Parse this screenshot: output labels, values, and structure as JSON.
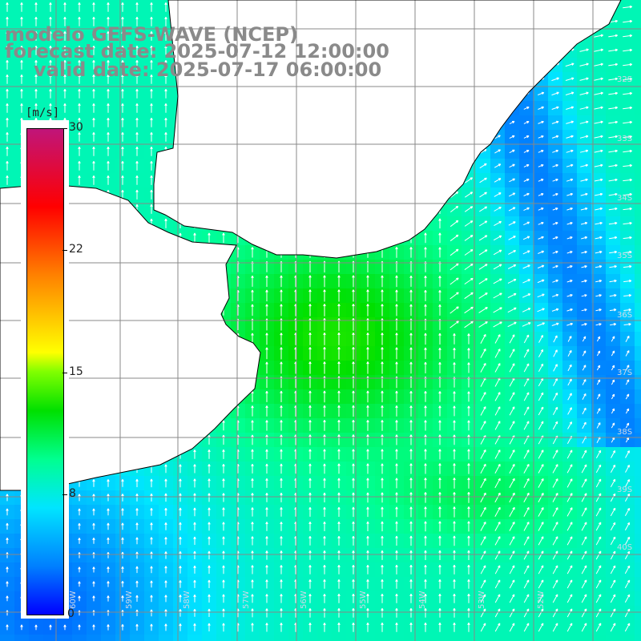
{
  "header": {
    "line1": "modelo GEFS-WAVE (NCEP)",
    "line2": "forecast date: 2025-07-12 12:00:00",
    "line3": "valid date: 2025-07-17 06:00:00"
  },
  "colorbar": {
    "unit": "[m/s]",
    "ticks": [
      "30",
      "22",
      "15",
      "8",
      "0"
    ]
  },
  "map": {
    "lat_labels": [
      "32S",
      "33S",
      "34S",
      "35S",
      "36S",
      "37S",
      "38S",
      "39S",
      "40S"
    ],
    "lon_labels": [
      "60W",
      "59W",
      "58W",
      "57W",
      "56W",
      "55W",
      "54W",
      "53W",
      "52W"
    ],
    "colors": {
      "land": "#ffffff",
      "grid": "#888888",
      "coast": "#000000",
      "arrows": "#ffffff"
    }
  }
}
